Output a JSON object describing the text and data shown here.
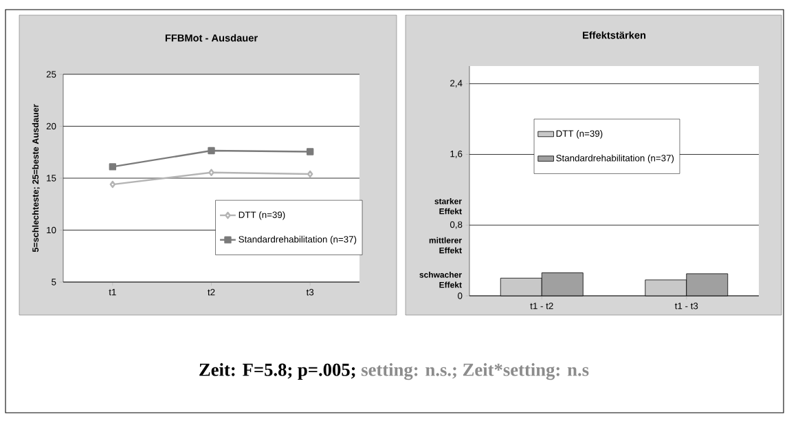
{
  "chart_data": [
    {
      "type": "line",
      "title": "FFBMot - Ausdauer",
      "ylabel": "5=schlechteste; 25=beste Ausdauer",
      "categories": [
        "t1",
        "t2",
        "t3"
      ],
      "series": [
        {
          "name": "DTT (n=39)",
          "color": "#b4b4b4",
          "marker": "diamond",
          "values": [
            14.4,
            15.55,
            15.4
          ]
        },
        {
          "name": "Standardrehabilitation (n=37)",
          "color": "#7a7a7a",
          "marker": "square",
          "values": [
            16.1,
            17.65,
            17.55
          ]
        }
      ],
      "ylim": [
        5,
        25
      ],
      "yticks": [
        5,
        10,
        15,
        20,
        25
      ],
      "grid": "y",
      "legend": "bottom right",
      "annotations": [
        "Zeit: F=5.8; p=.005;",
        "setting: n.s.;  Zeit*setting: n.s"
      ]
    },
    {
      "type": "bar",
      "title": "Effektstärken",
      "categories": [
        "t1 - t2",
        "t1 - t3"
      ],
      "series": [
        {
          "name": "DTT (n=39)",
          "color": "#c8c8c8",
          "values": [
            0.2,
            0.18
          ]
        },
        {
          "name": "Standardrehabilitation (n=37)",
          "color": "#a0a0a0",
          "values": [
            0.26,
            0.25
          ]
        }
      ],
      "ylim": [
        0,
        2.6
      ],
      "yticks": [
        0,
        {
          "value": 0.8,
          "label": "0,8"
        },
        {
          "value": 1.6,
          "label": "1,6"
        },
        {
          "value": 2.4,
          "label": "2,4"
        }
      ],
      "grid": "y",
      "legend": "top",
      "annotations": [
        "starker Effekt",
        "mittlerer Effekt",
        "schwacher Effekt"
      ]
    }
  ]
}
